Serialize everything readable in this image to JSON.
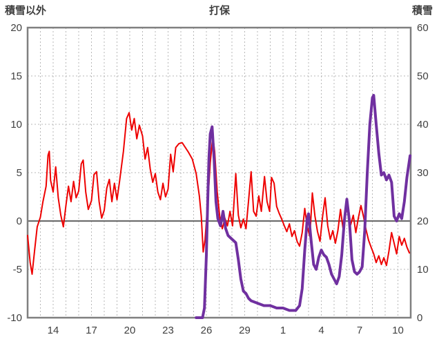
{
  "chart_data": {
    "type": "line",
    "title": "打保",
    "left_axis_label": "積雪以外",
    "right_axis_label": "積雪",
    "left_axis": {
      "min": -10,
      "max": 20,
      "ticks": [
        20,
        15,
        10,
        5,
        0,
        -5,
        -10
      ]
    },
    "right_axis": {
      "min": 0,
      "max": 60,
      "ticks": [
        60,
        50,
        40,
        30,
        20,
        10,
        0
      ]
    },
    "x_axis": {
      "min": 12,
      "max": 42,
      "minor_grid_step": 1,
      "tick_days": [
        14,
        17,
        20,
        23,
        26,
        29,
        32,
        35,
        38,
        41
      ],
      "tick_labels": [
        "14",
        "17",
        "20",
        "23",
        "26",
        "29",
        "1",
        "4",
        "7",
        "10"
      ]
    },
    "colors": {
      "grid": "#b7b7b7",
      "axis_border": "#7f7f7f",
      "zero_line": "#6e6e6e",
      "text": "#404040",
      "temperature": "#ee0000",
      "snow": "#7030a0"
    },
    "legend": "off",
    "grid": "on",
    "series": [
      {
        "name": "non-snow-temperature",
        "axis": "left",
        "color": "#ee0000",
        "width": 2,
        "points": [
          [
            12.0,
            -1.5
          ],
          [
            12.2,
            -4.3
          ],
          [
            12.35,
            -5.5
          ],
          [
            12.55,
            -3.0
          ],
          [
            12.75,
            -0.6
          ],
          [
            13.0,
            0.4
          ],
          [
            13.2,
            2.0
          ],
          [
            13.45,
            3.6
          ],
          [
            13.6,
            6.8
          ],
          [
            13.7,
            7.2
          ],
          [
            13.8,
            4.2
          ],
          [
            14.0,
            3.0
          ],
          [
            14.2,
            5.6
          ],
          [
            14.4,
            2.4
          ],
          [
            14.6,
            0.6
          ],
          [
            14.8,
            -0.6
          ],
          [
            15.0,
            1.6
          ],
          [
            15.2,
            3.6
          ],
          [
            15.4,
            2.0
          ],
          [
            15.6,
            4.1
          ],
          [
            15.8,
            2.4
          ],
          [
            16.0,
            3.1
          ],
          [
            16.2,
            5.9
          ],
          [
            16.35,
            6.3
          ],
          [
            16.55,
            3.0
          ],
          [
            16.75,
            1.2
          ],
          [
            17.0,
            2.1
          ],
          [
            17.2,
            4.8
          ],
          [
            17.4,
            5.1
          ],
          [
            17.6,
            2.0
          ],
          [
            17.8,
            0.3
          ],
          [
            18.0,
            1.1
          ],
          [
            18.2,
            3.4
          ],
          [
            18.4,
            4.3
          ],
          [
            18.6,
            2.0
          ],
          [
            18.8,
            3.9
          ],
          [
            19.0,
            2.2
          ],
          [
            19.2,
            4.1
          ],
          [
            19.5,
            7.2
          ],
          [
            19.75,
            10.6
          ],
          [
            19.95,
            11.2
          ],
          [
            20.15,
            9.4
          ],
          [
            20.35,
            10.6
          ],
          [
            20.55,
            8.5
          ],
          [
            20.75,
            9.9
          ],
          [
            21.0,
            8.8
          ],
          [
            21.2,
            6.4
          ],
          [
            21.4,
            7.6
          ],
          [
            21.6,
            5.4
          ],
          [
            21.8,
            4.0
          ],
          [
            22.0,
            4.9
          ],
          [
            22.2,
            3.0
          ],
          [
            22.4,
            2.2
          ],
          [
            22.6,
            3.9
          ],
          [
            22.8,
            2.5
          ],
          [
            23.0,
            3.3
          ],
          [
            23.2,
            6.9
          ],
          [
            23.4,
            5.1
          ],
          [
            23.6,
            7.6
          ],
          [
            23.85,
            8.0
          ],
          [
            24.1,
            8.1
          ],
          [
            24.35,
            7.6
          ],
          [
            24.6,
            7.1
          ],
          [
            24.9,
            6.4
          ],
          [
            25.2,
            4.9
          ],
          [
            25.45,
            2.6
          ],
          [
            25.6,
            0.5
          ],
          [
            25.75,
            -3.2
          ],
          [
            25.9,
            -1.9
          ],
          [
            26.1,
            1.8
          ],
          [
            26.3,
            6.0
          ],
          [
            26.5,
            8.8
          ],
          [
            26.65,
            7.2
          ],
          [
            26.85,
            3.0
          ],
          [
            27.05,
            0.4
          ],
          [
            27.25,
            -0.8
          ],
          [
            27.45,
            0.3
          ],
          [
            27.65,
            -0.5
          ],
          [
            27.85,
            1.0
          ],
          [
            28.05,
            -0.5
          ],
          [
            28.3,
            4.9
          ],
          [
            28.5,
            0.6
          ],
          [
            28.7,
            -0.7
          ],
          [
            28.9,
            0.2
          ],
          [
            29.1,
            -0.8
          ],
          [
            29.3,
            2.1
          ],
          [
            29.5,
            5.1
          ],
          [
            29.7,
            1.0
          ],
          [
            29.9,
            0.5
          ],
          [
            30.1,
            2.6
          ],
          [
            30.3,
            1.0
          ],
          [
            30.55,
            4.6
          ],
          [
            30.75,
            2.0
          ],
          [
            30.95,
            1.0
          ],
          [
            31.1,
            4.5
          ],
          [
            31.3,
            3.9
          ],
          [
            31.5,
            1.5
          ],
          [
            31.7,
            0.8
          ],
          [
            31.9,
            0.2
          ],
          [
            32.1,
            -0.5
          ],
          [
            32.3,
            -1.1
          ],
          [
            32.5,
            -0.3
          ],
          [
            32.7,
            -1.6
          ],
          [
            32.9,
            -1.0
          ],
          [
            33.1,
            -2.1
          ],
          [
            33.3,
            -2.6
          ],
          [
            33.5,
            -1.2
          ],
          [
            33.7,
            1.3
          ],
          [
            33.9,
            -0.6
          ],
          [
            34.1,
            -1.6
          ],
          [
            34.3,
            2.9
          ],
          [
            34.5,
            0.5
          ],
          [
            34.7,
            -1.1
          ],
          [
            34.9,
            -2.1
          ],
          [
            35.1,
            0.5
          ],
          [
            35.3,
            2.4
          ],
          [
            35.5,
            -0.5
          ],
          [
            35.7,
            -1.9
          ],
          [
            35.9,
            -1.0
          ],
          [
            36.1,
            -2.3
          ],
          [
            36.3,
            -1.0
          ],
          [
            36.5,
            1.2
          ],
          [
            36.7,
            -0.8
          ],
          [
            36.9,
            0.8
          ],
          [
            37.1,
            1.5
          ],
          [
            37.3,
            -0.4
          ],
          [
            37.5,
            0.6
          ],
          [
            37.7,
            -1.2
          ],
          [
            37.9,
            0.3
          ],
          [
            38.1,
            1.6
          ],
          [
            38.3,
            0.5
          ],
          [
            38.5,
            -0.9
          ],
          [
            38.7,
            -2.0
          ],
          [
            38.9,
            -2.7
          ],
          [
            39.1,
            -3.4
          ],
          [
            39.3,
            -4.3
          ],
          [
            39.5,
            -3.6
          ],
          [
            39.7,
            -4.5
          ],
          [
            39.9,
            -3.8
          ],
          [
            40.1,
            -4.6
          ],
          [
            40.3,
            -3.1
          ],
          [
            40.5,
            -1.2
          ],
          [
            40.7,
            -2.3
          ],
          [
            40.9,
            -3.4
          ],
          [
            41.1,
            -1.6
          ],
          [
            41.3,
            -2.5
          ],
          [
            41.5,
            -1.8
          ],
          [
            41.7,
            -2.7
          ],
          [
            41.9,
            -3.3
          ]
        ]
      },
      {
        "name": "snow-depth",
        "axis": "right",
        "color": "#7030a0",
        "width": 4,
        "points": [
          [
            25.2,
            0
          ],
          [
            25.7,
            0
          ],
          [
            25.85,
            2
          ],
          [
            26.0,
            13
          ],
          [
            26.1,
            24
          ],
          [
            26.2,
            33
          ],
          [
            26.3,
            38
          ],
          [
            26.45,
            39.5
          ],
          [
            26.6,
            33
          ],
          [
            26.75,
            24
          ],
          [
            26.9,
            20.5
          ],
          [
            27.1,
            19
          ],
          [
            27.3,
            22
          ],
          [
            27.5,
            18.5
          ],
          [
            27.7,
            17
          ],
          [
            27.9,
            16.5
          ],
          [
            28.1,
            16
          ],
          [
            28.3,
            15.5
          ],
          [
            28.5,
            12
          ],
          [
            28.7,
            8
          ],
          [
            28.9,
            5.5
          ],
          [
            29.1,
            5
          ],
          [
            29.3,
            4
          ],
          [
            29.5,
            3.5
          ],
          [
            30.0,
            3
          ],
          [
            30.5,
            2.5
          ],
          [
            31.0,
            2.5
          ],
          [
            31.5,
            2
          ],
          [
            32.0,
            2
          ],
          [
            32.5,
            1.5
          ],
          [
            33.0,
            1.5
          ],
          [
            33.3,
            2.5
          ],
          [
            33.5,
            6
          ],
          [
            33.7,
            14
          ],
          [
            33.9,
            20.5
          ],
          [
            34.0,
            21.5
          ],
          [
            34.2,
            16
          ],
          [
            34.4,
            11
          ],
          [
            34.6,
            10
          ],
          [
            34.8,
            12.5
          ],
          [
            35.0,
            14
          ],
          [
            35.2,
            13
          ],
          [
            35.4,
            12.5
          ],
          [
            35.6,
            11
          ],
          [
            35.8,
            9
          ],
          [
            36.0,
            8
          ],
          [
            36.2,
            7
          ],
          [
            36.4,
            8.5
          ],
          [
            36.6,
            13
          ],
          [
            36.8,
            20
          ],
          [
            37.0,
            24.5
          ],
          [
            37.2,
            20
          ],
          [
            37.4,
            12
          ],
          [
            37.6,
            9.5
          ],
          [
            37.8,
            9
          ],
          [
            38.0,
            9.5
          ],
          [
            38.2,
            10.5
          ],
          [
            38.4,
            18
          ],
          [
            38.6,
            30
          ],
          [
            38.8,
            40
          ],
          [
            39.0,
            45.5
          ],
          [
            39.1,
            46
          ],
          [
            39.3,
            40
          ],
          [
            39.5,
            34
          ],
          [
            39.7,
            29.5
          ],
          [
            39.9,
            30
          ],
          [
            40.1,
            28.5
          ],
          [
            40.3,
            29.5
          ],
          [
            40.5,
            28
          ],
          [
            40.7,
            21
          ],
          [
            40.9,
            20
          ],
          [
            41.1,
            21.5
          ],
          [
            41.3,
            20.5
          ],
          [
            41.5,
            24
          ],
          [
            41.7,
            29
          ],
          [
            41.95,
            33.5
          ]
        ]
      }
    ]
  }
}
